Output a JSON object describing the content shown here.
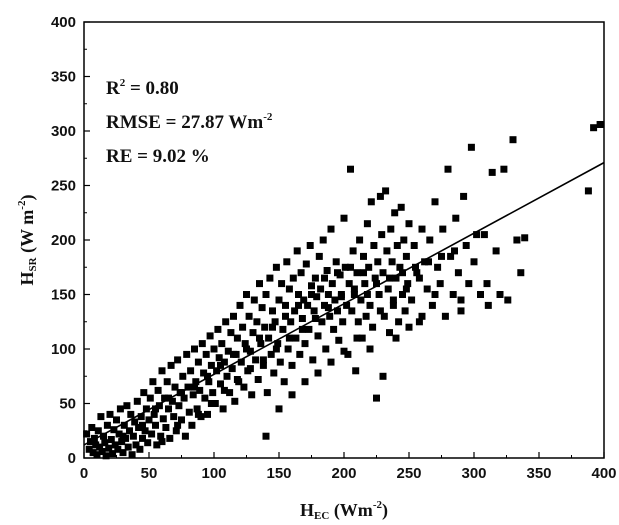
{
  "chart_data": {
    "type": "scatter",
    "title": "",
    "xlabel": {
      "main": "H",
      "sub": "EC",
      "unit_prefix": " (Wm",
      "unit_sup": "-2",
      "unit_suffix": ")"
    },
    "ylabel": {
      "main": "H",
      "sub": "SR",
      "unit_prefix": " (W m",
      "unit_sup": "-2",
      "unit_suffix": ")"
    },
    "xlim": [
      0,
      400
    ],
    "ylim": [
      0,
      400
    ],
    "xticks": [
      0,
      50,
      100,
      150,
      200,
      250,
      300,
      350,
      400
    ],
    "yticks": [
      0,
      50,
      100,
      150,
      200,
      250,
      300,
      350,
      400
    ],
    "grid": false,
    "marker": "square",
    "marker_color": "#000000",
    "stats": {
      "r2": {
        "label": "R",
        "sup": "2",
        "text": " = 0.80"
      },
      "rmse": {
        "text": "RMSE = 27.87 Wm",
        "sup": "-2"
      },
      "re": {
        "text": "RE = 9.02 %"
      }
    },
    "fit_line": {
      "x": [
        0,
        400
      ],
      "y": [
        12,
        271
      ],
      "color": "#000000"
    },
    "points": [
      [
        2,
        22
      ],
      [
        4,
        8
      ],
      [
        5,
        15
      ],
      [
        6,
        28
      ],
      [
        7,
        5
      ],
      [
        8,
        18
      ],
      [
        9,
        12
      ],
      [
        10,
        3
      ],
      [
        11,
        25
      ],
      [
        12,
        10
      ],
      [
        13,
        38
      ],
      [
        14,
        6
      ],
      [
        15,
        20
      ],
      [
        16,
        14
      ],
      [
        17,
        2
      ],
      [
        18,
        30
      ],
      [
        19,
        9
      ],
      [
        20,
        40
      ],
      [
        21,
        17
      ],
      [
        22,
        4
      ],
      [
        23,
        26
      ],
      [
        24,
        12
      ],
      [
        25,
        35
      ],
      [
        26,
        8
      ],
      [
        27,
        22
      ],
      [
        28,
        45
      ],
      [
        29,
        15
      ],
      [
        30,
        5
      ],
      [
        31,
        30
      ],
      [
        32,
        18
      ],
      [
        33,
        48
      ],
      [
        34,
        10
      ],
      [
        35,
        25
      ],
      [
        36,
        40
      ],
      [
        37,
        3
      ],
      [
        38,
        20
      ],
      [
        39,
        33
      ],
      [
        40,
        12
      ],
      [
        41,
        52
      ],
      [
        42,
        28
      ],
      [
        43,
        8
      ],
      [
        44,
        38
      ],
      [
        45,
        18
      ],
      [
        46,
        60
      ],
      [
        47,
        25
      ],
      [
        48,
        45
      ],
      [
        49,
        14
      ],
      [
        50,
        35
      ],
      [
        51,
        55
      ],
      [
        52,
        22
      ],
      [
        53,
        70
      ],
      [
        54,
        40
      ],
      [
        55,
        30
      ],
      [
        56,
        12
      ],
      [
        57,
        62
      ],
      [
        58,
        48
      ],
      [
        59,
        20
      ],
      [
        60,
        80
      ],
      [
        61,
        36
      ],
      [
        62,
        55
      ],
      [
        63,
        28
      ],
      [
        64,
        70
      ],
      [
        65,
        45
      ],
      [
        66,
        18
      ],
      [
        67,
        85
      ],
      [
        68,
        52
      ],
      [
        69,
        38
      ],
      [
        70,
        65
      ],
      [
        71,
        25
      ],
      [
        72,
        90
      ],
      [
        73,
        48
      ],
      [
        74,
        60
      ],
      [
        75,
        35
      ],
      [
        76,
        75
      ],
      [
        77,
        55
      ],
      [
        78,
        20
      ],
      [
        79,
        95
      ],
      [
        80,
        65
      ],
      [
        81,
        42
      ],
      [
        82,
        80
      ],
      [
        83,
        30
      ],
      [
        84,
        58
      ],
      [
        85,
        100
      ],
      [
        86,
        70
      ],
      [
        87,
        45
      ],
      [
        88,
        88
      ],
      [
        89,
        62
      ],
      [
        90,
        38
      ],
      [
        91,
        105
      ],
      [
        92,
        78
      ],
      [
        93,
        55
      ],
      [
        94,
        95
      ],
      [
        95,
        40
      ],
      [
        96,
        70
      ],
      [
        97,
        112
      ],
      [
        98,
        85
      ],
      [
        99,
        60
      ],
      [
        100,
        100
      ],
      [
        101,
        50
      ],
      [
        102,
        80
      ],
      [
        103,
        118
      ],
      [
        104,
        92
      ],
      [
        105,
        68
      ],
      [
        106,
        105
      ],
      [
        107,
        45
      ],
      [
        108,
        88
      ],
      [
        109,
        125
      ],
      [
        110,
        75
      ],
      [
        111,
        98
      ],
      [
        112,
        60
      ],
      [
        113,
        115
      ],
      [
        114,
        82
      ],
      [
        115,
        130
      ],
      [
        116,
        52
      ],
      [
        117,
        95
      ],
      [
        118,
        110
      ],
      [
        119,
        70
      ],
      [
        120,
        140
      ],
      [
        121,
        88
      ],
      [
        122,
        120
      ],
      [
        123,
        65
      ],
      [
        124,
        105
      ],
      [
        125,
        150
      ],
      [
        126,
        80
      ],
      [
        127,
        130
      ],
      [
        128,
        98
      ],
      [
        129,
        58
      ],
      [
        130,
        115
      ],
      [
        131,
        145
      ],
      [
        132,
        90
      ],
      [
        133,
        125
      ],
      [
        134,
        72
      ],
      [
        135,
        160
      ],
      [
        136,
        105
      ],
      [
        137,
        138
      ],
      [
        138,
        85
      ],
      [
        139,
        120
      ],
      [
        140,
        150
      ],
      [
        141,
        60
      ],
      [
        142,
        110
      ],
      [
        143,
        165
      ],
      [
        144,
        95
      ],
      [
        145,
        135
      ],
      [
        146,
        78
      ],
      [
        147,
        125
      ],
      [
        148,
        175
      ],
      [
        149,
        105
      ],
      [
        150,
        145
      ],
      [
        151,
        88
      ],
      [
        152,
        160
      ],
      [
        153,
        118
      ],
      [
        154,
        70
      ],
      [
        155,
        140
      ],
      [
        156,
        180
      ],
      [
        157,
        100
      ],
      [
        158,
        155
      ],
      [
        159,
        125
      ],
      [
        160,
        85
      ],
      [
        161,
        165
      ],
      [
        162,
        135
      ],
      [
        163,
        110
      ],
      [
        164,
        190
      ],
      [
        165,
        150
      ],
      [
        166,
        95
      ],
      [
        167,
        170
      ],
      [
        168,
        128
      ],
      [
        169,
        145
      ],
      [
        170,
        105
      ],
      [
        171,
        178
      ],
      [
        172,
        140
      ],
      [
        173,
        118
      ],
      [
        174,
        195
      ],
      [
        175,
        158
      ],
      [
        176,
        90
      ],
      [
        177,
        135
      ],
      [
        178,
        165
      ],
      [
        179,
        148
      ],
      [
        180,
        112
      ],
      [
        181,
        185
      ],
      [
        182,
        155
      ],
      [
        183,
        125
      ],
      [
        184,
        200
      ],
      [
        185,
        140
      ],
      [
        186,
        100
      ],
      [
        187,
        172
      ],
      [
        188,
        150
      ],
      [
        189,
        130
      ],
      [
        190,
        210
      ],
      [
        191,
        160
      ],
      [
        192,
        118
      ],
      [
        193,
        145
      ],
      [
        194,
        180
      ],
      [
        195,
        135
      ],
      [
        196,
        108
      ],
      [
        197,
        168
      ],
      [
        198,
        150
      ],
      [
        199,
        125
      ],
      [
        200,
        220
      ],
      [
        201,
        175
      ],
      [
        202,
        140
      ],
      [
        203,
        95
      ],
      [
        204,
        160
      ],
      [
        205,
        265
      ],
      [
        206,
        135
      ],
      [
        207,
        190
      ],
      [
        208,
        150
      ],
      [
        209,
        80
      ],
      [
        210,
        170
      ],
      [
        211,
        125
      ],
      [
        212,
        200
      ],
      [
        213,
        145
      ],
      [
        214,
        110
      ],
      [
        215,
        185
      ],
      [
        216,
        160
      ],
      [
        217,
        130
      ],
      [
        218,
        215
      ],
      [
        219,
        175
      ],
      [
        220,
        140
      ],
      [
        221,
        235
      ],
      [
        222,
        120
      ],
      [
        223,
        195
      ],
      [
        224,
        165
      ],
      [
        225,
        55
      ],
      [
        226,
        180
      ],
      [
        227,
        150
      ],
      [
        228,
        240
      ],
      [
        229,
        205
      ],
      [
        230,
        170
      ],
      [
        231,
        130
      ],
      [
        232,
        245
      ],
      [
        233,
        190
      ],
      [
        234,
        155
      ],
      [
        235,
        115
      ],
      [
        236,
        210
      ],
      [
        237,
        180
      ],
      [
        238,
        140
      ],
      [
        239,
        225
      ],
      [
        240,
        165
      ],
      [
        241,
        195
      ],
      [
        242,
        125
      ],
      [
        243,
        175
      ],
      [
        244,
        230
      ],
      [
        245,
        150
      ],
      [
        246,
        200
      ],
      [
        247,
        135
      ],
      [
        248,
        185
      ],
      [
        249,
        160
      ],
      [
        250,
        215
      ],
      [
        252,
        145
      ],
      [
        254,
        195
      ],
      [
        256,
        170
      ],
      [
        258,
        125
      ],
      [
        260,
        210
      ],
      [
        262,
        180
      ],
      [
        264,
        155
      ],
      [
        266,
        200
      ],
      [
        268,
        140
      ],
      [
        270,
        235
      ],
      [
        272,
        175
      ],
      [
        274,
        160
      ],
      [
        276,
        210
      ],
      [
        278,
        130
      ],
      [
        280,
        265
      ],
      [
        282,
        185
      ],
      [
        284,
        150
      ],
      [
        286,
        220
      ],
      [
        288,
        170
      ],
      [
        290,
        135
      ],
      [
        292,
        240
      ],
      [
        294,
        195
      ],
      [
        296,
        160
      ],
      [
        298,
        285
      ],
      [
        300,
        180
      ],
      [
        302,
        205
      ],
      [
        305,
        150
      ],
      [
        308,
        205
      ],
      [
        311,
        140
      ],
      [
        314,
        262
      ],
      [
        317,
        190
      ],
      [
        320,
        150
      ],
      [
        323,
        265
      ],
      [
        326,
        145
      ],
      [
        330,
        292
      ],
      [
        333,
        200
      ],
      [
        336,
        170
      ],
      [
        339,
        202
      ],
      [
        388,
        245
      ],
      [
        392,
        303
      ],
      [
        397,
        306
      ],
      [
        30,
        20
      ],
      [
        45,
        30
      ],
      [
        55,
        45
      ],
      [
        65,
        55
      ],
      [
        75,
        60
      ],
      [
        85,
        65
      ],
      [
        95,
        75
      ],
      [
        105,
        85
      ],
      [
        115,
        95
      ],
      [
        125,
        100
      ],
      [
        135,
        110
      ],
      [
        145,
        120
      ],
      [
        155,
        130
      ],
      [
        165,
        140
      ],
      [
        175,
        150
      ],
      [
        185,
        165
      ],
      [
        195,
        170
      ],
      [
        205,
        175
      ],
      [
        215,
        170
      ],
      [
        225,
        160
      ],
      [
        235,
        165
      ],
      [
        245,
        170
      ],
      [
        255,
        175
      ],
      [
        265,
        180
      ],
      [
        275,
        185
      ],
      [
        285,
        190
      ],
      [
        60,
        15
      ],
      [
        72,
        30
      ],
      [
        88,
        40
      ],
      [
        98,
        50
      ],
      [
        108,
        62
      ],
      [
        118,
        72
      ],
      [
        128,
        82
      ],
      [
        138,
        90
      ],
      [
        148,
        100
      ],
      [
        158,
        110
      ],
      [
        168,
        118
      ],
      [
        178,
        128
      ],
      [
        188,
        138
      ],
      [
        198,
        148
      ],
      [
        208,
        155
      ],
      [
        218,
        150
      ],
      [
        228,
        135
      ],
      [
        238,
        145
      ],
      [
        248,
        155
      ],
      [
        258,
        165
      ],
      [
        140,
        20
      ],
      [
        150,
        45
      ],
      [
        160,
        58
      ],
      [
        170,
        70
      ],
      [
        180,
        78
      ],
      [
        190,
        88
      ],
      [
        200,
        98
      ],
      [
        210,
        110
      ],
      [
        220,
        100
      ],
      [
        230,
        75
      ],
      [
        240,
        110
      ],
      [
        250,
        120
      ],
      [
        260,
        130
      ],
      [
        270,
        150
      ],
      [
        290,
        145
      ],
      [
        310,
        160
      ]
    ]
  }
}
